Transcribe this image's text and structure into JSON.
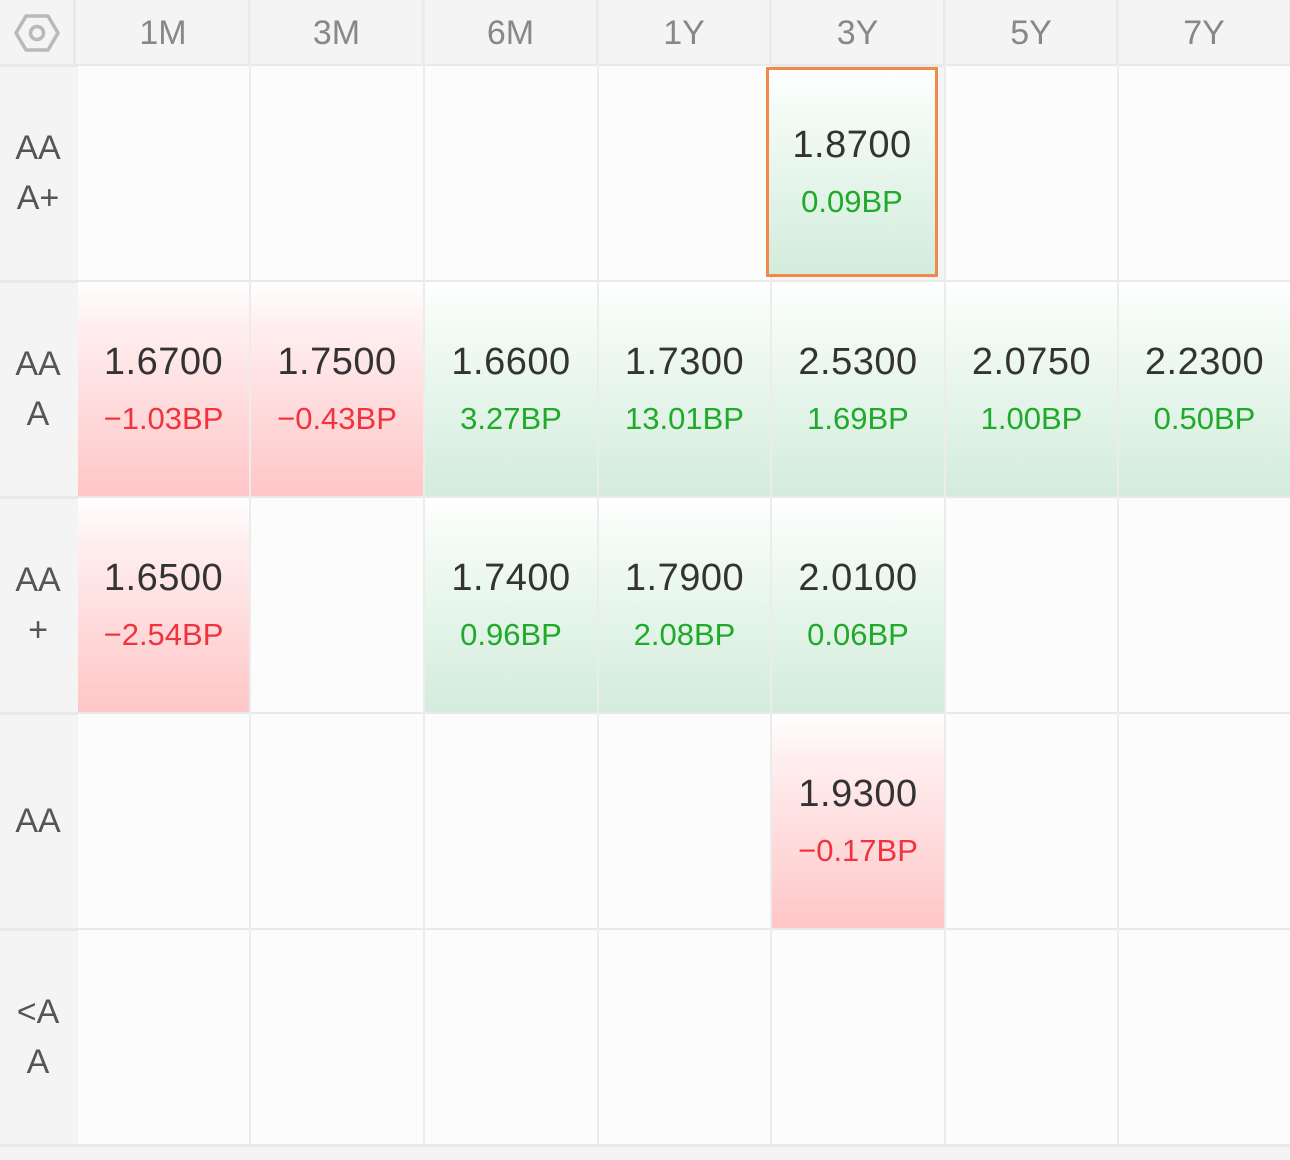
{
  "settings_icon": "hexagon-settings-icon",
  "columns": [
    "1M",
    "3M",
    "6M",
    "1Y",
    "3Y",
    "5Y",
    "7Y"
  ],
  "rows": [
    {
      "label": "AA\nA+",
      "cells": [
        null,
        null,
        null,
        null,
        {
          "rate": "1.8700",
          "change": "0.09BP",
          "direction": "up",
          "selected": true
        },
        null,
        null
      ]
    },
    {
      "label": "AA\nA",
      "cells": [
        {
          "rate": "1.6700",
          "change": "−1.03BP",
          "direction": "down"
        },
        {
          "rate": "1.7500",
          "change": "−0.43BP",
          "direction": "down"
        },
        {
          "rate": "1.6600",
          "change": "3.27BP",
          "direction": "up"
        },
        {
          "rate": "1.7300",
          "change": "13.01BP",
          "direction": "up"
        },
        {
          "rate": "2.5300",
          "change": "1.69BP",
          "direction": "up"
        },
        {
          "rate": "2.0750",
          "change": "1.00BP",
          "direction": "up"
        },
        {
          "rate": "2.2300",
          "change": "0.50BP",
          "direction": "up"
        }
      ]
    },
    {
      "label": "AA\n+",
      "cells": [
        {
          "rate": "1.6500",
          "change": "−2.54BP",
          "direction": "down"
        },
        null,
        {
          "rate": "1.7400",
          "change": "0.96BP",
          "direction": "up"
        },
        {
          "rate": "1.7900",
          "change": "2.08BP",
          "direction": "up"
        },
        {
          "rate": "2.0100",
          "change": "0.06BP",
          "direction": "up"
        },
        null,
        null
      ]
    },
    {
      "label": "AA",
      "cells": [
        null,
        null,
        null,
        null,
        {
          "rate": "1.9300",
          "change": "−0.17BP",
          "direction": "down"
        },
        null,
        null
      ]
    },
    {
      "label": "<A\nA",
      "cells": [
        null,
        null,
        null,
        null,
        null,
        null,
        null
      ]
    }
  ],
  "colors": {
    "up_text": "#1faa2a",
    "down_text": "#f1333d",
    "selected_border": "#f08a4b"
  }
}
